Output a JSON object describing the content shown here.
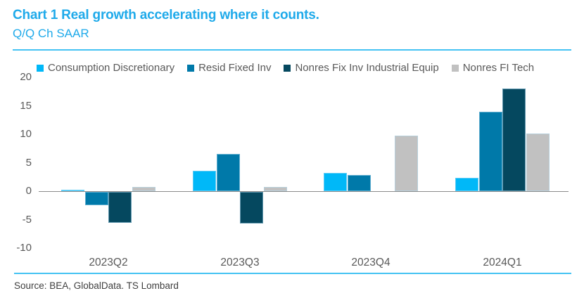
{
  "header": {
    "title": "Chart 1 Real growth accelerating where it counts.",
    "subtitle": "Q/Q Ch SAAR"
  },
  "footer": {
    "source": "Source: BEA, GlobalData. TS Lombard"
  },
  "colors": {
    "title_cyan": "#1FAAEA",
    "rule_cyan": "#45C3F3",
    "axis_text": "#595959",
    "zero_line": "#8C8C8C",
    "source_text": "#3F3F3F"
  },
  "chart_data": {
    "type": "bar",
    "title": "Chart 1 Real growth accelerating where it counts.",
    "subtitle": "Q/Q Ch SAAR",
    "categories": [
      "2023Q2",
      "2023Q3",
      "2023Q4",
      "2024Q1"
    ],
    "series": [
      {
        "name": "Consumption Discretionary",
        "color": "#00B8F8",
        "values": [
          0.2,
          3.6,
          3.2,
          2.3
        ]
      },
      {
        "name": "Resid Fixed Inv",
        "color": "#0079A9",
        "values": [
          -2.3,
          6.5,
          2.8,
          13.9
        ]
      },
      {
        "name": "Nonres Fix Inv Industrial Equip",
        "color": "#05485F",
        "values": [
          -5.4,
          -5.6,
          0,
          18.0
        ]
      },
      {
        "name": "Nonres FI Tech",
        "color": "#C1C1C1",
        "values": [
          0.7,
          0.7,
          9.7,
          10.1
        ]
      }
    ],
    "ylabel": "Q/Q Ch SAAR",
    "ylim": [
      -10,
      20
    ],
    "yticks": [
      20,
      15,
      10,
      5,
      0,
      -5,
      -10
    ],
    "grid": false,
    "legend_position": "top"
  }
}
